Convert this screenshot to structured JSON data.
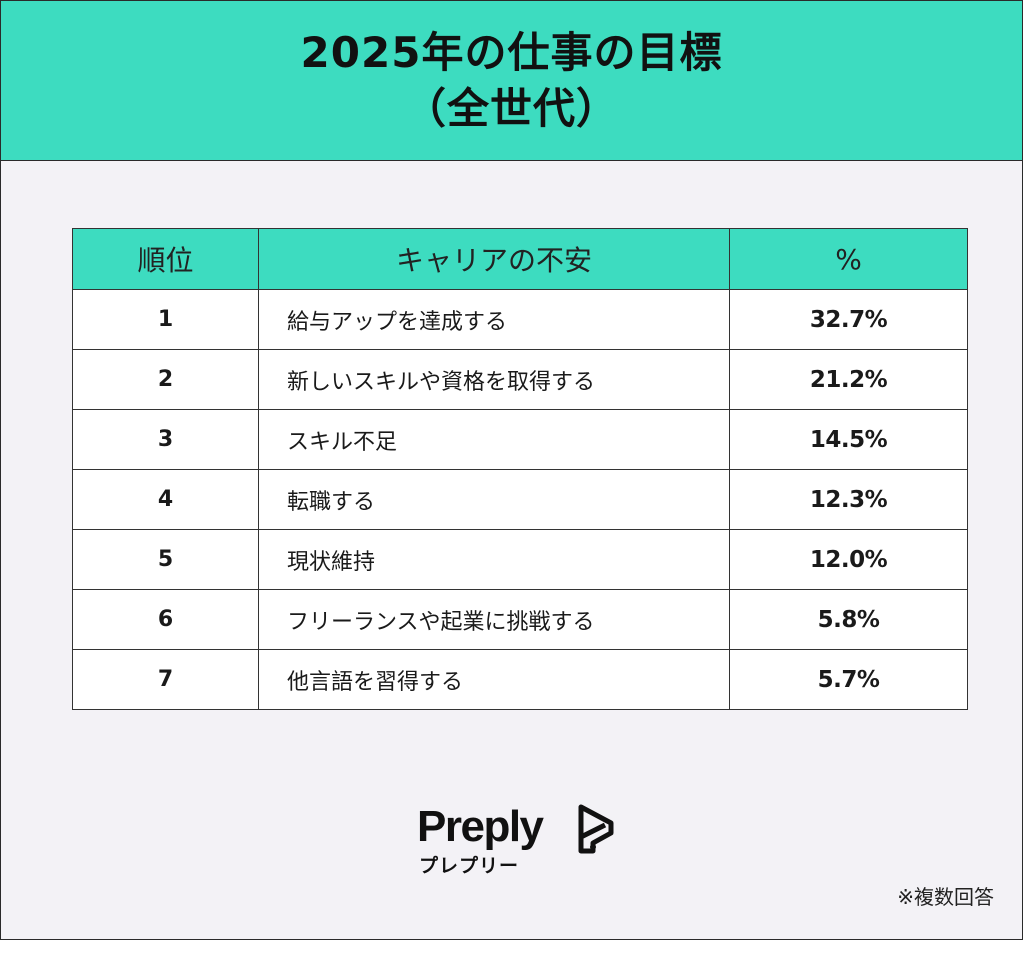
{
  "header": {
    "title_line1": "2025年の仕事の目標",
    "title_line2": "（全世代）"
  },
  "colors": {
    "accent": "#3ddcc0",
    "background": "#f3f2f6",
    "text": "#111111"
  },
  "chart_data": {
    "type": "table",
    "columns": [
      "順位",
      "キャリアの不安",
      "%"
    ],
    "rows": [
      {
        "rank": "1",
        "goal": "給与アップを達成する",
        "percent": "32.7%",
        "value": 32.7
      },
      {
        "rank": "2",
        "goal": "新しいスキルや資格を取得する",
        "percent": "21.2%",
        "value": 21.2
      },
      {
        "rank": "3",
        "goal": "スキル不足",
        "percent": "14.5%",
        "value": 14.5
      },
      {
        "rank": "4",
        "goal": "転職する",
        "percent": "12.3%",
        "value": 12.3
      },
      {
        "rank": "5",
        "goal": "現状維持",
        "percent": "12.0%",
        "value": 12.0
      },
      {
        "rank": "6",
        "goal": "フリーランスや起業に挑戦する",
        "percent": "5.8%",
        "value": 5.8
      },
      {
        "rank": "7",
        "goal": "他言語を習得する",
        "percent": "5.7%",
        "value": 5.7
      }
    ]
  },
  "brand": {
    "name": "Preply",
    "kana": "プレプリー",
    "icon": "preply-logo-icon"
  },
  "footnote": "※複数回答"
}
